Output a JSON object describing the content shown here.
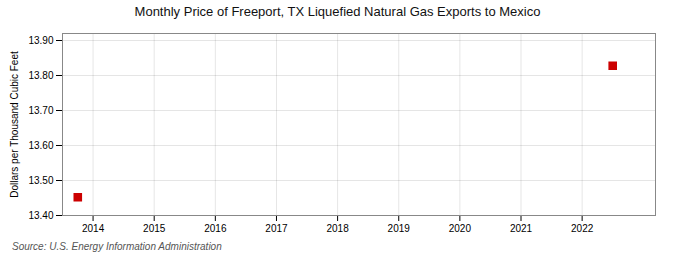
{
  "chart_data": {
    "type": "scatter",
    "title": "Monthly Price of Freeport, TX Liquefied Natural Gas Exports to Mexico",
    "ylabel": "Dollars per Thousand Cubic Feet",
    "annotations": [
      "Source: U.S. Energy Information Administration"
    ],
    "x": [
      2013.75,
      2022.5
    ],
    "values": [
      13.452,
      13.828
    ],
    "color": "#cc0000",
    "marker": "square",
    "xlim": [
      2013.5,
      2023.2
    ],
    "ylim": [
      13.4,
      13.92
    ],
    "xticks": [
      2014,
      2015,
      2016,
      2017,
      2018,
      2019,
      2020,
      2021,
      2022
    ],
    "yticks": [
      {
        "value": 13.4,
        "label": "13.40"
      },
      {
        "value": 13.5,
        "label": "13.50"
      },
      {
        "value": 13.6,
        "label": "13.60"
      },
      {
        "value": 13.7,
        "label": "13.70"
      },
      {
        "value": 13.8,
        "label": "13.80"
      },
      {
        "value": 13.9,
        "label": "13.90"
      }
    ],
    "grid": true
  }
}
